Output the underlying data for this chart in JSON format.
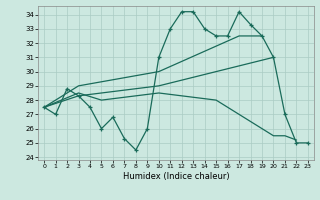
{
  "xlabel": "Humidex (Indice chaleur)",
  "bg_color": "#cce8e0",
  "grid_color": "#aaccc4",
  "line_color": "#1a6b5a",
  "xlim": [
    -0.5,
    23.5
  ],
  "ylim": [
    23.8,
    34.6
  ],
  "yticks": [
    24,
    25,
    26,
    27,
    28,
    29,
    30,
    31,
    32,
    33,
    34
  ],
  "xticks": [
    0,
    1,
    2,
    3,
    4,
    5,
    6,
    7,
    8,
    9,
    10,
    11,
    12,
    13,
    14,
    15,
    16,
    17,
    18,
    19,
    20,
    21,
    22,
    23
  ],
  "series": [
    {
      "x": [
        0,
        1,
        2,
        3,
        4,
        5,
        6,
        7,
        8,
        9,
        10,
        11,
        12,
        13,
        14,
        15,
        16,
        17,
        18,
        19,
        20,
        21,
        22,
        23
      ],
      "y": [
        27.5,
        27.0,
        28.8,
        28.3,
        27.5,
        26.0,
        26.8,
        25.3,
        24.5,
        26.0,
        31.0,
        33.0,
        34.2,
        34.2,
        33.0,
        32.5,
        32.5,
        34.2,
        33.3,
        32.5,
        31.0,
        27.0,
        25.0,
        25.0
      ]
    },
    {
      "x": [
        0,
        3,
        10,
        17,
        19
      ],
      "y": [
        27.5,
        29.0,
        30.0,
        32.5,
        32.5
      ]
    },
    {
      "x": [
        0,
        3,
        10,
        19,
        20
      ],
      "y": [
        27.5,
        28.3,
        29.0,
        30.8,
        31.0
      ]
    },
    {
      "x": [
        0,
        3,
        5,
        10,
        15,
        19,
        20,
        21,
        22
      ],
      "y": [
        27.5,
        28.5,
        28.0,
        28.5,
        28.0,
        26.0,
        25.5,
        25.5,
        25.2
      ]
    }
  ]
}
